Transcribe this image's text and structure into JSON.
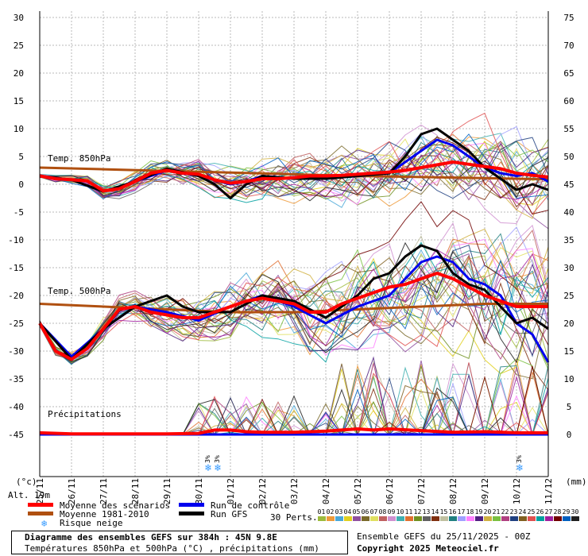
{
  "chart_data": {
    "type": "line",
    "x_dates": [
      "25/11",
      "26/11",
      "27/11",
      "28/11",
      "29/11",
      "30/11",
      "01/12",
      "02/12",
      "03/12",
      "04/12",
      "05/12",
      "06/12",
      "07/12",
      "08/12",
      "09/12",
      "10/12",
      "11/12"
    ],
    "left_axis_unit": "(°c)",
    "right_axis_unit": "(mm)",
    "left_ticks": [
      30,
      25,
      20,
      15,
      10,
      5,
      0,
      -5,
      -10,
      -15,
      -20,
      -25,
      -30,
      -35,
      -40,
      -45
    ],
    "right_ticks": [
      75,
      70,
      65,
      60,
      55,
      50,
      45,
      40,
      35,
      30,
      25,
      20,
      15,
      10,
      5,
      0
    ],
    "ylim_temp": [
      -45,
      30
    ],
    "ylim_precip_mm": [
      0,
      75
    ],
    "panel_labels": {
      "t850": "Temp. 850hPa",
      "t500": "Temp. 500hPa",
      "precip": "Précipitations"
    },
    "series": [
      {
        "name": "Moyenne des scénarios",
        "color": "#ff0000",
        "panel": "t850",
        "x": [
          0,
          0.5,
          1,
          1.5,
          2,
          2.5,
          3,
          3.5,
          4,
          4.5,
          5,
          5.5,
          6,
          6.5,
          7,
          7.5,
          8,
          8.5,
          9,
          9.5,
          10,
          10.5,
          11,
          11.5,
          12,
          12.5,
          13,
          13.5,
          14,
          14.5,
          15,
          15.5,
          16
        ],
        "y": [
          1.5,
          1,
          0.8,
          0.6,
          -1.2,
          -0.8,
          0.5,
          2,
          2.5,
          2,
          1.8,
          0.8,
          0.2,
          0.5,
          1,
          1,
          1.2,
          1.5,
          1.5,
          1.6,
          1.8,
          2,
          2.2,
          2.5,
          3,
          3.5,
          4,
          3.6,
          3.2,
          2.8,
          2,
          1.6,
          1.3
        ]
      },
      {
        "name": "Run de contrôle",
        "color": "#0000ee",
        "panel": "t850",
        "x": [
          0,
          1,
          2,
          3,
          4,
          5,
          6,
          6.5,
          7,
          8,
          9,
          10,
          11,
          11.5,
          12,
          12.5,
          13,
          13.5,
          14,
          14.5,
          15,
          15.5,
          16
        ],
        "y": [
          1.5,
          0.8,
          -1.3,
          0.5,
          2.5,
          1.5,
          0,
          0.5,
          1.5,
          1,
          1,
          1.5,
          2,
          4,
          6,
          8,
          7,
          5,
          3,
          2,
          1.5,
          2,
          0.5
        ]
      },
      {
        "name": "Run GFS",
        "color": "#000000",
        "panel": "t850",
        "x": [
          0,
          1,
          2,
          3,
          4,
          5,
          5.5,
          6,
          6.5,
          7,
          8,
          9,
          10,
          11,
          11.5,
          12,
          12.5,
          13,
          13.5,
          14,
          14.5,
          15,
          15.5,
          16
        ],
        "y": [
          1.5,
          0.8,
          -1.3,
          0.5,
          2.8,
          1.5,
          0,
          -2.5,
          0,
          1.5,
          1,
          1,
          1.5,
          2,
          5,
          9,
          10,
          8,
          6,
          3,
          1,
          -1,
          0,
          -1
        ]
      },
      {
        "name": "Moyenne 1981-2010",
        "color": "#b05010",
        "panel": "t850",
        "x": [
          0,
          2,
          4,
          6,
          8,
          10,
          12,
          14,
          16
        ],
        "y": [
          3,
          2.7,
          2.4,
          2.1,
          1.8,
          1.5,
          1.3,
          1.1,
          0.9
        ]
      },
      {
        "name": "Moyenne des scénarios",
        "color": "#ff0000",
        "panel": "t500",
        "x": [
          0,
          0.5,
          1,
          1.5,
          2,
          2.5,
          3,
          3.5,
          4,
          4.5,
          5,
          5.5,
          6,
          6.5,
          7,
          7.5,
          8,
          8.5,
          9,
          9.5,
          10,
          10.5,
          11,
          11.5,
          12,
          12.5,
          13,
          13.5,
          14,
          14.5,
          15,
          15.5,
          16
        ],
        "y": [
          -25,
          -30,
          -31.5,
          -29.5,
          -26,
          -22.5,
          -22,
          -23,
          -23.5,
          -24,
          -24,
          -23,
          -22,
          -21,
          -20.5,
          -21,
          -21.5,
          -23,
          -23,
          -21.5,
          -20.5,
          -19.5,
          -18.5,
          -18,
          -17,
          -16,
          -17,
          -18.5,
          -20,
          -21,
          -22,
          -22,
          -22
        ]
      },
      {
        "name": "Run de contrôle",
        "color": "#0000ee",
        "panel": "t500",
        "x": [
          0,
          1,
          2,
          3,
          4,
          5,
          6,
          6.5,
          7,
          8,
          9,
          10,
          11,
          11.5,
          12,
          12.5,
          13,
          13.5,
          14,
          14.5,
          15,
          15.5,
          16
        ],
        "y": [
          -25,
          -31,
          -26,
          -22,
          -23,
          -24.5,
          -22,
          -21,
          -20,
          -22,
          -25,
          -22,
          -20,
          -17,
          -14,
          -13,
          -14,
          -17,
          -18,
          -20,
          -25,
          -27,
          -32
        ]
      },
      {
        "name": "Run GFS",
        "color": "#000000",
        "panel": "t500",
        "x": [
          0,
          1,
          2,
          3,
          4,
          4.5,
          5,
          6,
          7,
          8,
          9,
          10,
          10.5,
          11,
          11.5,
          12,
          12.5,
          13,
          13.5,
          14,
          14.5,
          15,
          15.5,
          16
        ],
        "y": [
          -25,
          -31.5,
          -26,
          -22,
          -20,
          -22,
          -23,
          -23,
          -20,
          -21,
          -24,
          -20,
          -17,
          -16,
          -13,
          -11,
          -12,
          -16,
          -18,
          -19,
          -22,
          -25,
          -24,
          -26
        ]
      },
      {
        "name": "Moyenne 1981-2010",
        "color": "#b05010",
        "panel": "t500",
        "x": [
          0,
          2,
          4,
          6,
          8,
          10,
          12,
          14,
          16
        ],
        "y": [
          -21.5,
          -22,
          -22.5,
          -23,
          -23,
          -22.5,
          -22,
          -21.5,
          -21.5
        ]
      },
      {
        "name": "Moyenne des scénarios",
        "color": "#ff0000",
        "panel": "precip",
        "x": [
          0,
          1,
          2,
          3,
          4,
          5,
          5.5,
          6,
          6.5,
          7,
          8,
          9,
          10,
          10.5,
          11,
          12,
          13,
          14,
          15,
          16
        ],
        "y": [
          0.3,
          0.1,
          0.1,
          0.1,
          0.1,
          0.2,
          0.8,
          0.8,
          0.5,
          0.4,
          0.4,
          0.6,
          1,
          0.8,
          1,
          0.7,
          0.4,
          0.5,
          0.3,
          0.3
        ]
      },
      {
        "name": "Run de contrôle",
        "color": "#0000ee",
        "panel": "precip",
        "x": [
          0,
          16
        ],
        "y": [
          0,
          0
        ]
      }
    ],
    "snow_markers": [
      {
        "x": 5.3,
        "pct": "3%"
      },
      {
        "x": 5.6,
        "pct": "3%"
      },
      {
        "x": 15.1,
        "pct": "3%"
      }
    ],
    "perturbation_colors": [
      "#9dbb3c",
      "#ee9a3a",
      "#4aa8d8",
      "#e0d020",
      "#9050a0",
      "#7a6a2a",
      "#e0e060",
      "#c06060",
      "#d090d0",
      "#40b0b0",
      "#e07030",
      "#709020",
      "#606060",
      "#803010",
      "#c0c0a0",
      "#208080",
      "#a0a0ff",
      "#ff80ff",
      "#502080",
      "#d0b040",
      "#7ac040",
      "#b04080",
      "#204080",
      "#806020",
      "#e05050",
      "#00a0a0",
      "#a020a0",
      "#700000",
      "#0060c0",
      "#202020"
    ]
  },
  "legend": {
    "items": [
      {
        "label": "Moyenne des scénarios",
        "color": "#ff0000"
      },
      {
        "label": "Moyenne 1981-2010",
        "color": "#b05010"
      },
      {
        "label": "Risque neige",
        "color": "#3399ff"
      },
      {
        "label": "Run de contrôle",
        "color": "#0000ee"
      },
      {
        "label": "Run GFS",
        "color": "#000000"
      }
    ],
    "perts_label": "30 Perts.",
    "pert_numbers": [
      "01",
      "02",
      "03",
      "04",
      "05",
      "06",
      "07",
      "08",
      "09",
      "10",
      "11",
      "12",
      "13",
      "14",
      "15",
      "16",
      "17",
      "18",
      "19",
      "20",
      "21",
      "22",
      "23",
      "24",
      "25",
      "26",
      "27",
      "28",
      "29",
      "30"
    ]
  },
  "altitude": "Alt. 19m",
  "footer": {
    "title": "Diagramme des ensembles GEFS sur 384h : 45N 9.8E",
    "subtitle": "Températures 850hPa et 500hPa (°C) , précipitations (mm)",
    "run": "Ensemble GEFS du 25/11/2025 - 00Z",
    "copyright": "Copyright 2025 Meteociel.fr"
  }
}
